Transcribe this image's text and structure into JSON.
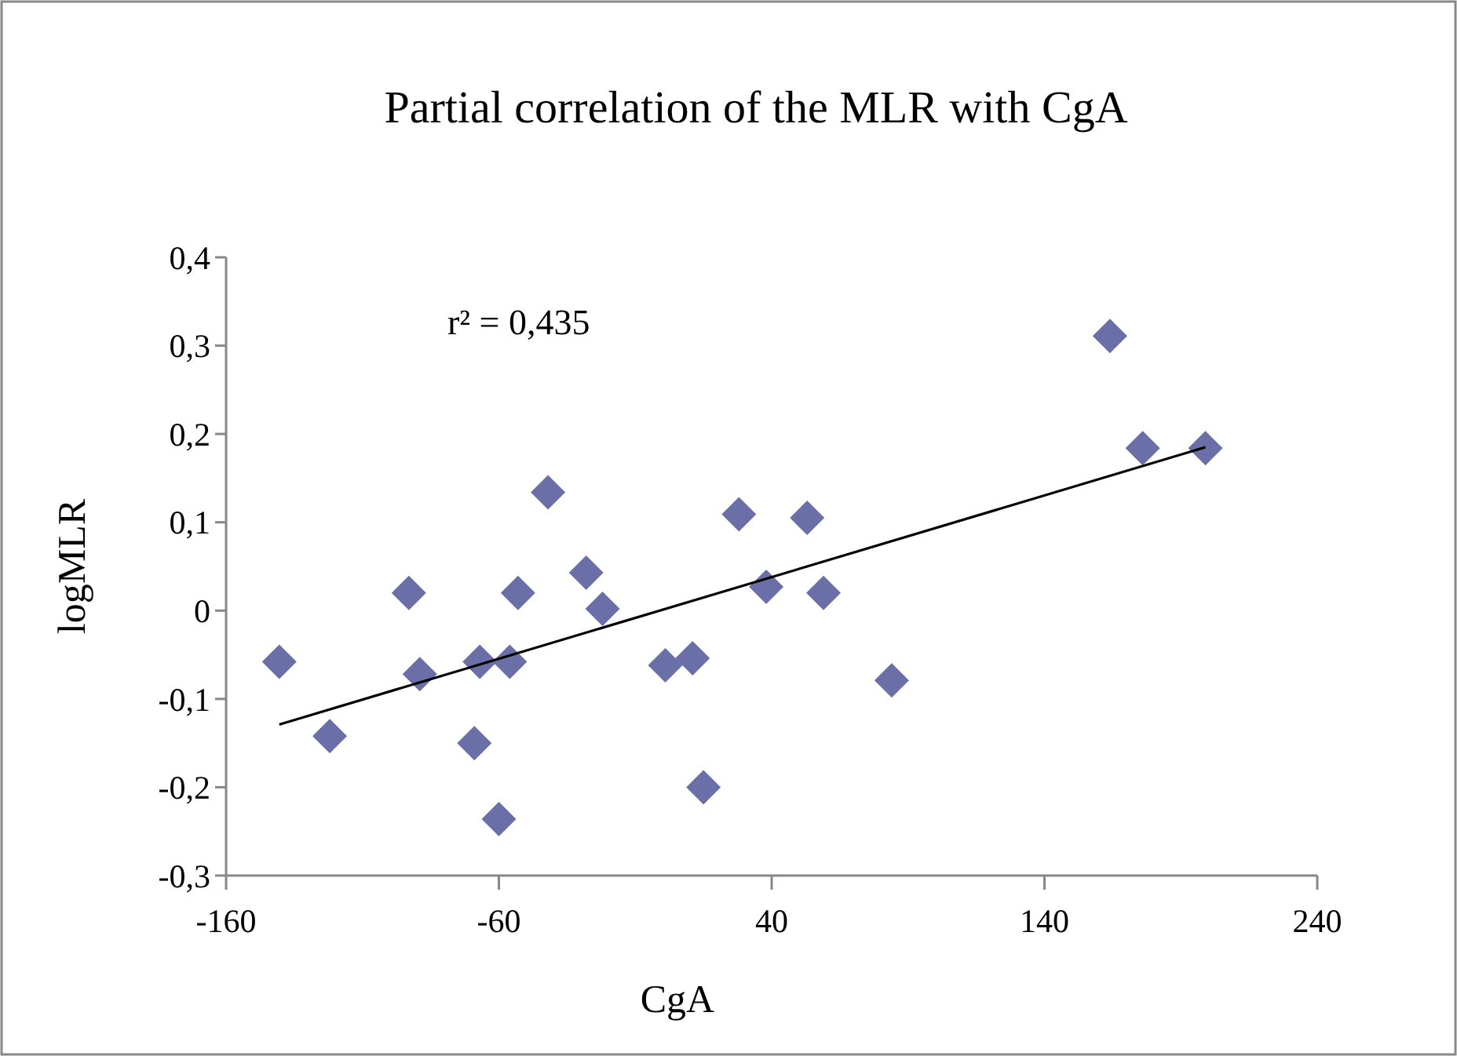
{
  "chart_data": {
    "type": "scatter",
    "title": "Partial correlation of the MLR with CgA",
    "xlabel": "CgA",
    "ylabel": "logMLR",
    "xlim": [
      -160,
      240
    ],
    "xticks": [
      -160,
      -60,
      40,
      140,
      240
    ],
    "ylim": [
      -0.3,
      0.4
    ],
    "yticks": [
      {
        "value": -0.3,
        "label": "-0,3"
      },
      {
        "value": -0.2,
        "label": "-0,2"
      },
      {
        "value": -0.1,
        "label": "-0,1"
      },
      0,
      {
        "value": 0.1,
        "label": "0,1"
      },
      {
        "value": 0.2,
        "label": "0,2"
      },
      {
        "value": 0.3,
        "label": "0,3"
      },
      {
        "value": 0.4,
        "label": "0,4"
      }
    ],
    "grid": false,
    "annotations": [
      "r² = 0,435"
    ],
    "series": [
      {
        "color": "#6a6fa8",
        "marker": "diamond",
        "x": [
          -140.5,
          -122,
          -93,
          -89,
          -69,
          -67,
          -60,
          -56,
          -53,
          -42,
          -28,
          -22,
          1,
          11,
          15,
          28,
          38,
          53,
          59,
          84,
          164,
          176,
          199
        ],
        "values": [
          -0.058,
          -0.142,
          0.02,
          -0.072,
          -0.15,
          -0.058,
          -0.236,
          -0.058,
          0.02,
          0.134,
          0.043,
          0.002,
          -0.062,
          -0.054,
          -0.2,
          0.109,
          0.027,
          0.105,
          0.02,
          -0.079,
          0.311,
          0.184,
          0.184
        ]
      },
      {
        "type": "line",
        "color": "#000000",
        "marker": "none",
        "line_style": "solid",
        "x": [
          -140.5,
          199
        ],
        "values": [
          -0.129,
          0.185
        ]
      }
    ]
  }
}
